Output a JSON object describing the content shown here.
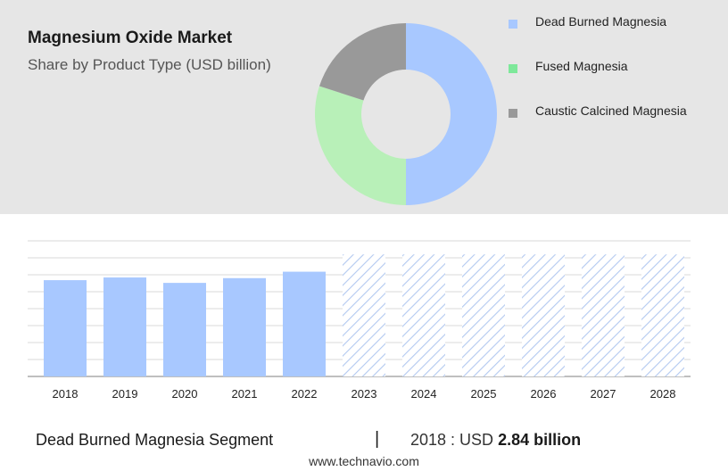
{
  "header": {
    "title": "Magnesium Oxide Market",
    "subtitle": "Share by Product Type (USD billion)"
  },
  "colors": {
    "dead_burned": "#a8c8ff",
    "fused": "#b8f0b8",
    "caustic": "#999999",
    "fused_swatch": "#7ee89a",
    "hatch": "#b3c9f0",
    "grid": "#d9d9d9",
    "axis": "#999999"
  },
  "chart_data": [
    {
      "type": "pie",
      "variant": "donut",
      "categories": [
        "Dead Burned Magnesia",
        "Fused Magnesia",
        "Caustic Calcined Magnesia"
      ],
      "values": [
        50,
        30,
        20
      ],
      "legend_position": "right"
    },
    {
      "type": "bar",
      "categories": [
        "2018",
        "2019",
        "2020",
        "2021",
        "2022",
        "2023",
        "2024",
        "2025",
        "2026",
        "2027",
        "2028"
      ],
      "values": [
        2.84,
        2.92,
        2.76,
        2.9,
        3.09,
        3.6,
        3.6,
        3.6,
        3.6,
        3.6,
        3.6
      ],
      "forecast_from": "2023",
      "forecast_style": "hatched",
      "ylim": [
        0,
        4.0
      ],
      "grid": true
    }
  ],
  "footer": {
    "segment": "Dead Burned Magnesia Segment",
    "divider": "|",
    "stat_prefix": "2018 : USD",
    "stat_value": "2.84 billion"
  },
  "source": "www.technavio.com"
}
